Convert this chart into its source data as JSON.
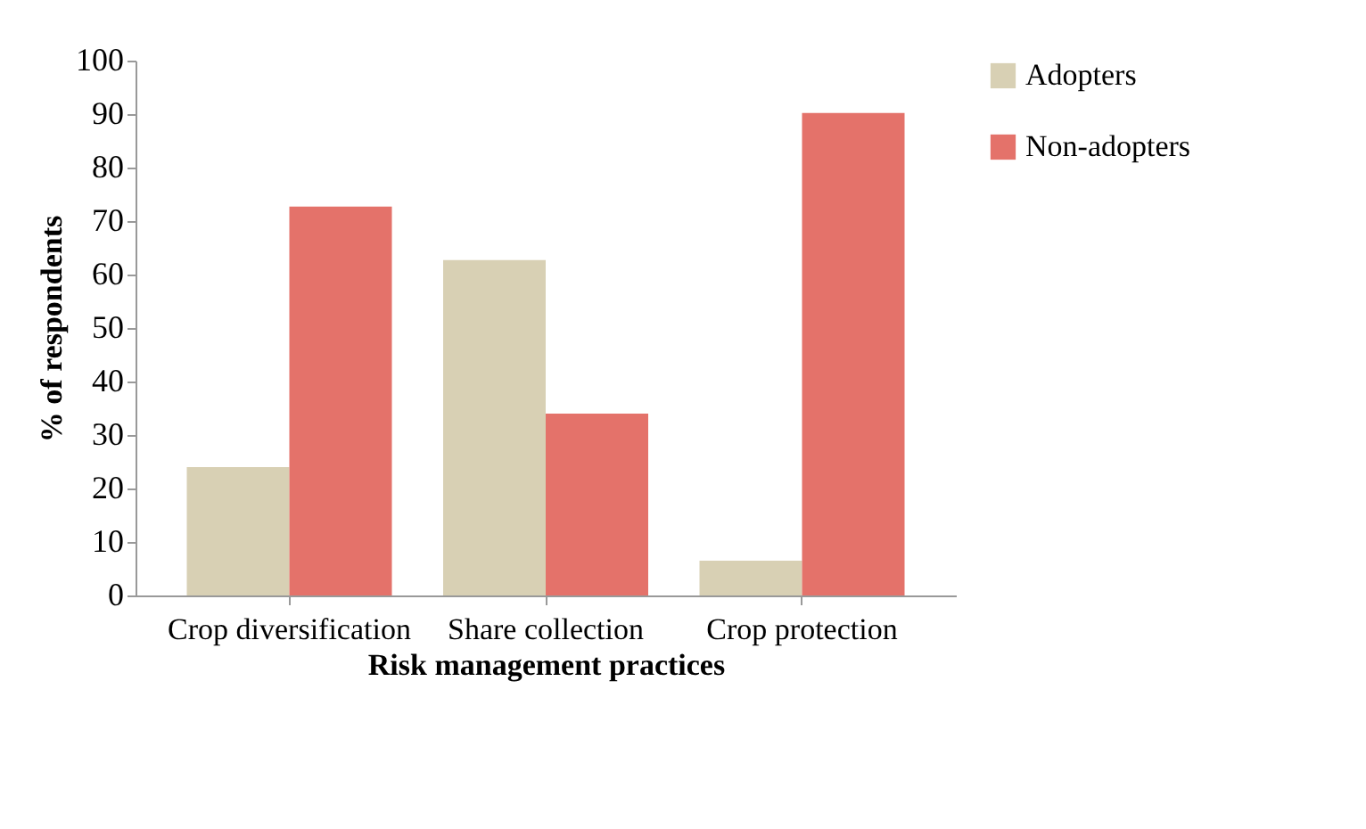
{
  "chart_data": {
    "type": "bar",
    "xlabel": "Risk management practices",
    "ylabel": "% of respondents",
    "categories": [
      "Crop diversification",
      "Share collection",
      "Crop protection"
    ],
    "series": [
      {
        "name": "Adopters",
        "color": "#d8d0b4",
        "values": [
          24,
          62.7,
          6.5
        ]
      },
      {
        "name": "Non-adopters",
        "color": "#e4726a",
        "values": [
          72.7,
          34,
          90.2
        ]
      }
    ],
    "ylim": [
      0,
      100
    ],
    "yticks": [
      0,
      10,
      20,
      30,
      40,
      50,
      60,
      70,
      80,
      90,
      100
    ],
    "grid": false,
    "legend": "right"
  }
}
